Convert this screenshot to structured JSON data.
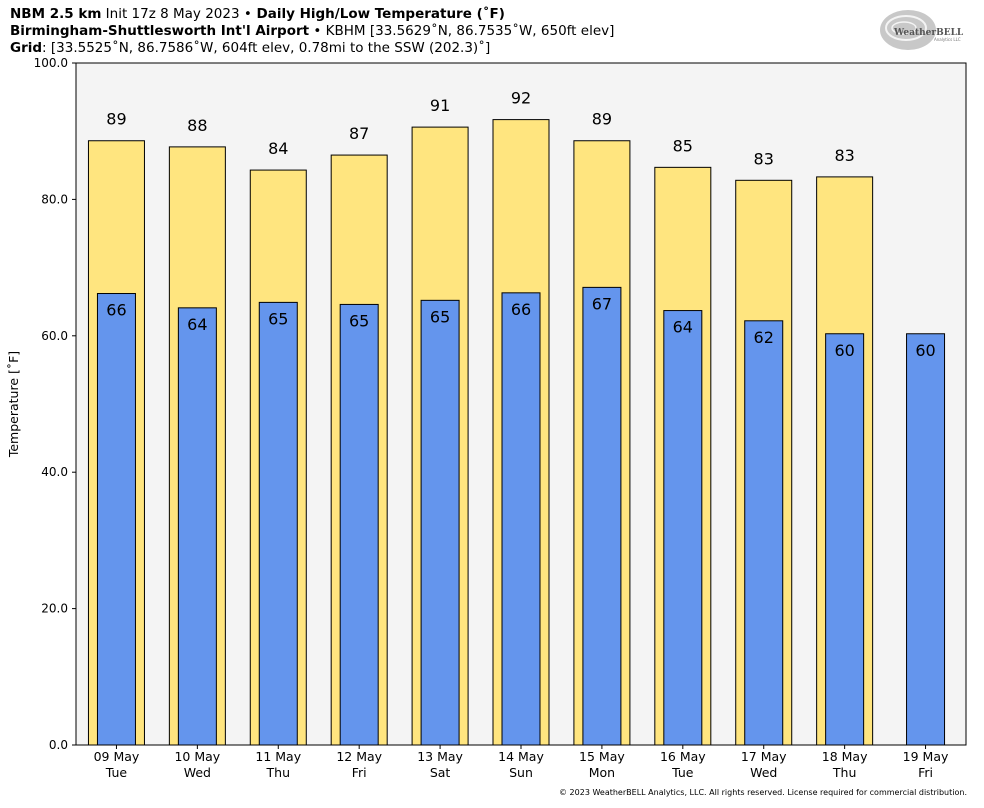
{
  "header": {
    "line1_bold": "NBM 2.5 km",
    "line1_init": " Init 17z 8 May 2023 ",
    "line1_sep": "•",
    "line1_title": " Daily High/Low Temperature (˚F)",
    "line2_bold": "Birmingham-Shuttlesworth Int'l Airport",
    "line2_sep": " • ",
    "line2_rest": "KBHM [33.5629˚N, 86.7535˚W, 650ft elev]",
    "line3_bold": "Grid",
    "line3_rest": ": [33.5525˚N, 86.7586˚W, 604ft elev, 0.78mi to the SSW (202.3)˚]"
  },
  "logo": {
    "text_main": "WeatherBELL",
    "text_sub": "Analytics LLC"
  },
  "footer": "© 2023 WeatherBELL Analytics, LLC. All rights reserved. License required for commercial distribution.",
  "colors": {
    "high": "#ffe57f",
    "low": "#6495ed",
    "plot_bg": "#f4f4f4",
    "outline": "#000000"
  },
  "chart_data": {
    "type": "bar",
    "categories": [
      [
        "09 May",
        "Tue"
      ],
      [
        "10 May",
        "Wed"
      ],
      [
        "11 May",
        "Thu"
      ],
      [
        "12 May",
        "Fri"
      ],
      [
        "13 May",
        "Sat"
      ],
      [
        "14 May",
        "Sun"
      ],
      [
        "15 May",
        "Mon"
      ],
      [
        "16 May",
        "Tue"
      ],
      [
        "17 May",
        "Wed"
      ],
      [
        "18 May",
        "Thu"
      ],
      [
        "19 May",
        "Fri"
      ]
    ],
    "series": [
      {
        "name": "High",
        "values": [
          88.6,
          87.7,
          84.3,
          86.5,
          90.6,
          91.7,
          88.6,
          84.7,
          82.8,
          83.3,
          null
        ],
        "labels": [
          "89",
          "88",
          "84",
          "87",
          "91",
          "92",
          "89",
          "85",
          "83",
          "83",
          ""
        ]
      },
      {
        "name": "Low",
        "values": [
          66.2,
          64.1,
          64.9,
          64.6,
          65.2,
          66.3,
          67.1,
          63.7,
          62.2,
          60.3,
          60.3
        ],
        "labels": [
          "66",
          "64",
          "65",
          "65",
          "65",
          "66",
          "67",
          "64",
          "62",
          "60",
          "60"
        ]
      }
    ],
    "ylabel": "Temperature [˚F]",
    "ylim": [
      0,
      100
    ],
    "yticks": [
      "0.0",
      "20.0",
      "40.0",
      "60.0",
      "80.0",
      "100.0"
    ],
    "grid": false
  }
}
